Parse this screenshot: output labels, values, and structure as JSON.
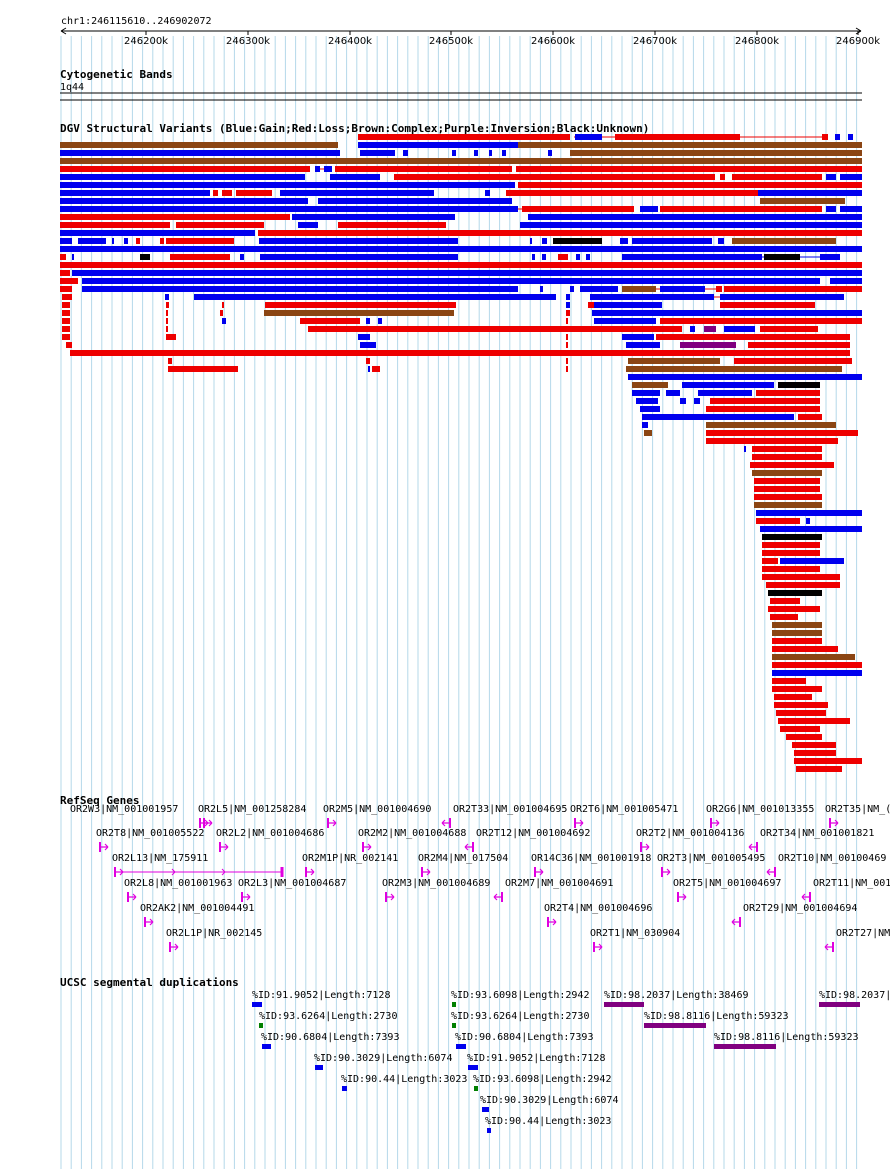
{
  "ruler": {
    "landmark": "chr1:246115610..246902072",
    "ticks": [
      "246200k",
      "246300k",
      "246400k",
      "246500k",
      "246600k",
      "246700k",
      "246800k",
      "246900k"
    ]
  },
  "tracks": {
    "cytoband": {
      "title": "Cytogenetic Bands",
      "band": "1q44"
    },
    "dgv": {
      "title": "DGV Structural Variants (Blue:Gain;Red:Loss;Brown:Complex;Purple:Inversion;Black:Unknown)"
    },
    "refseq": {
      "title": "RefSeq Genes"
    },
    "segdup": {
      "title": "UCSC segmental duplications"
    }
  },
  "colors": {
    "gain": "#0000ee",
    "loss": "#ee0000",
    "complex": "#8b4513",
    "inversion": "#800080",
    "unknown": "#000000",
    "gene": "#e000e0",
    "segdup_gray": "#008000",
    "grid": "#b5d8ea"
  },
  "genes": [
    {
      "label": "OR2W3|NM_001001957",
      "dir": "+"
    },
    {
      "label": "OR2L5|NM_001258284",
      "dir": "+"
    },
    {
      "label": "OR2M5|NM_001004690",
      "dir": "+"
    },
    {
      "label": "OR2T33|NM_001004695",
      "dir": "-"
    },
    {
      "label": "OR2T6|NM_001005471",
      "dir": "+"
    },
    {
      "label": "OR2G6|NM_001013355",
      "dir": "+"
    },
    {
      "label": "OR2T35|NM_(",
      "dir": "+"
    },
    {
      "label": "OR2T8|NM_001005522",
      "dir": "+"
    },
    {
      "label": "OR2L2|NM_001004686",
      "dir": "+"
    },
    {
      "label": "OR2M2|NM_001004688",
      "dir": "+"
    },
    {
      "label": "OR2T12|NM_001004692",
      "dir": "-"
    },
    {
      "label": "OR2T2|NM_001004136",
      "dir": "+"
    },
    {
      "label": "OR2T34|NM_001001821",
      "dir": "-"
    },
    {
      "label": "OR2L13|NM_175911",
      "dir": "+"
    },
    {
      "label": "OR2M1P|NR_002141",
      "dir": "+"
    },
    {
      "label": "OR2M4|NM_017504",
      "dir": "+"
    },
    {
      "label": "OR14C36|NM_001001918",
      "dir": "+"
    },
    {
      "label": "OR2T3|NM_001005495",
      "dir": "+"
    },
    {
      "label": "OR2T10|NM_00100469",
      "dir": "-"
    },
    {
      "label": "OR2L8|NM_001001963",
      "dir": "+"
    },
    {
      "label": "OR2L3|NM_001004687",
      "dir": "+"
    },
    {
      "label": "OR2M3|NM_001004689",
      "dir": "+"
    },
    {
      "label": "OR2M7|NM_001004691",
      "dir": "-"
    },
    {
      "label": "OR2T5|NM_001004697",
      "dir": "+"
    },
    {
      "label": "OR2T11|NM_001",
      "dir": "-"
    },
    {
      "label": "OR2AK2|NM_001004491",
      "dir": "+"
    },
    {
      "label": "OR2T4|NM_001004696",
      "dir": "+"
    },
    {
      "label": "OR2T29|NM_001004694",
      "dir": "-"
    },
    {
      "label": "OR2L1P|NR_002145",
      "dir": "+"
    },
    {
      "label": "OR2T1|NM_030904",
      "dir": "+"
    },
    {
      "label": "OR2T27|NM",
      "dir": "-"
    }
  ],
  "segdups": [
    {
      "label": "%ID:91.9052|Length:7128",
      "color": "#0000ee"
    },
    {
      "label": "%ID:93.6098|Length:2942",
      "color": "#008000"
    },
    {
      "label": "%ID:98.2037|Length:38469",
      "color": "#800080"
    },
    {
      "label": "%ID:98.2037|",
      "color": "#800080"
    },
    {
      "label": "%ID:93.6264|Length:2730",
      "color": "#008000"
    },
    {
      "label": "%ID:93.6264|Length:2730",
      "color": "#008000"
    },
    {
      "label": "%ID:98.8116|Length:59323",
      "color": "#800080"
    },
    {
      "label": "%ID:90.6804|Length:7393",
      "color": "#0000ee"
    },
    {
      "label": "%ID:90.6804|Length:7393",
      "color": "#0000ee"
    },
    {
      "label": "%ID:98.8116|Length:59323",
      "color": "#800080"
    },
    {
      "label": "%ID:90.3029|Length:6074",
      "color": "#0000ee"
    },
    {
      "label": "%ID:91.9052|Length:7128",
      "color": "#0000ee"
    },
    {
      "label": "%ID:90.44|Length:3023",
      "color": "#0000ee"
    },
    {
      "label": "%ID:93.6098|Length:2942",
      "color": "#008000"
    },
    {
      "label": "%ID:90.3029|Length:6074",
      "color": "#0000ee"
    },
    {
      "label": "%ID:90.44|Length:3023",
      "color": "#0000ee"
    }
  ]
}
